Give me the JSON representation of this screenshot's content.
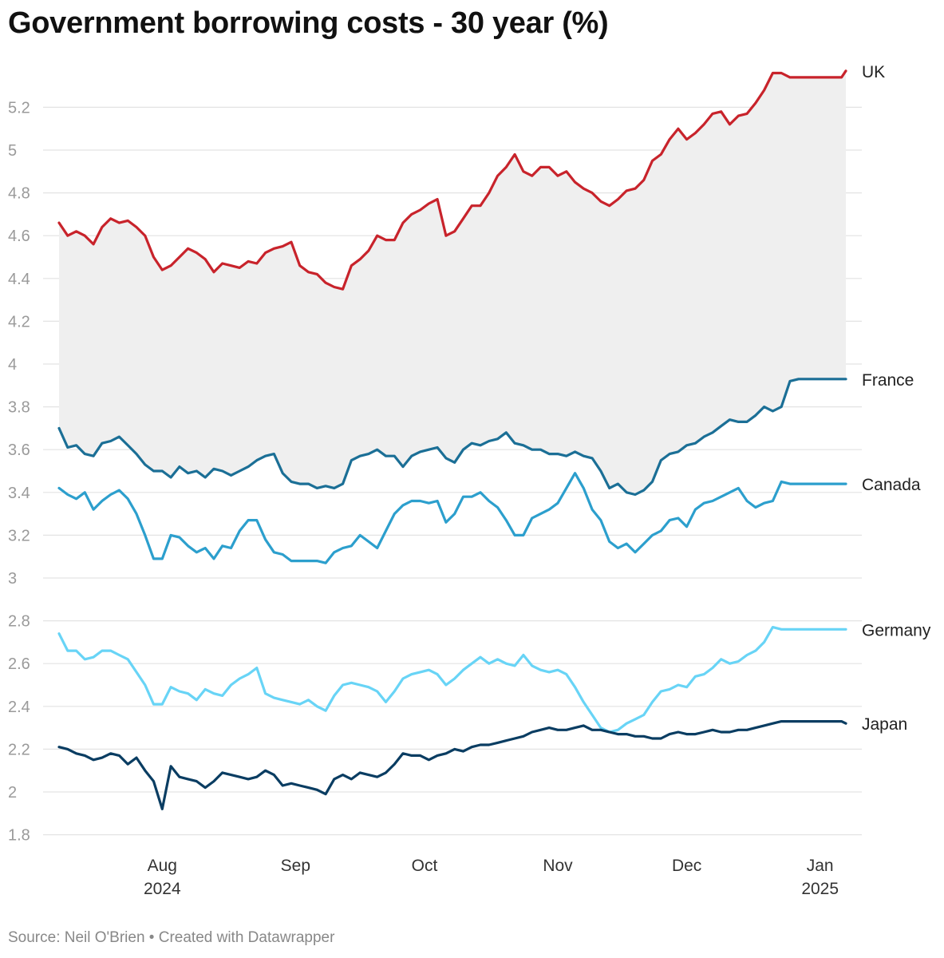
{
  "title": "Government borrowing costs - 30 year (%)",
  "source": "Source: Neil O'Brien • Created with Datawrapper",
  "chart_data": {
    "type": "line",
    "title": "Government borrowing costs - 30 year (%)",
    "ylim": [
      1.8,
      5.4
    ],
    "yticks": [
      "5.2",
      "5",
      "4.8",
      "4.6",
      "4.4",
      "4.2",
      "4",
      "3.8",
      "3.6",
      "3.4",
      "3.2",
      "3",
      "2.8",
      "2.6",
      "2.4",
      "2.2",
      "2",
      "1.8"
    ],
    "x_range_days": [
      0,
      183
    ],
    "x_unit": "days since 2024-07-08",
    "xticks": [
      {
        "label": "Aug",
        "sub": "2024",
        "day": 24
      },
      {
        "label": "Sep",
        "sub": "",
        "day": 55
      },
      {
        "label": "Oct",
        "sub": "",
        "day": 85
      },
      {
        "label": "Nov",
        "sub": "",
        "day": 116
      },
      {
        "label": "Dec",
        "sub": "",
        "day": 146
      },
      {
        "label": "Jan",
        "sub": "2025",
        "day": 177
      }
    ],
    "shade_between": [
      "UK",
      "France"
    ],
    "series": [
      {
        "name": "UK",
        "color": "#c8232b",
        "x": [
          0,
          2,
          4,
          6,
          8,
          10,
          12,
          14,
          16,
          18,
          20,
          22,
          24,
          26,
          28,
          30,
          32,
          34,
          36,
          38,
          40,
          42,
          44,
          46,
          48,
          50,
          52,
          54,
          56,
          58,
          60,
          62,
          64,
          66,
          68,
          70,
          72,
          74,
          76,
          78,
          80,
          82,
          84,
          86,
          88,
          90,
          92,
          94,
          96,
          98,
          100,
          102,
          104,
          106,
          108,
          110,
          112,
          114,
          116,
          118,
          120,
          122,
          124,
          126,
          128,
          130,
          132,
          134,
          136,
          138,
          140,
          142,
          144,
          146,
          148,
          150,
          152,
          154,
          156,
          158,
          160,
          162,
          164,
          166,
          168,
          170,
          172,
          174,
          176,
          178,
          180,
          182,
          183
        ],
        "values": [
          4.66,
          4.6,
          4.62,
          4.6,
          4.56,
          4.64,
          4.68,
          4.66,
          4.67,
          4.64,
          4.6,
          4.5,
          4.44,
          4.46,
          4.5,
          4.54,
          4.52,
          4.49,
          4.43,
          4.47,
          4.46,
          4.45,
          4.48,
          4.47,
          4.52,
          4.54,
          4.55,
          4.57,
          4.46,
          4.43,
          4.42,
          4.38,
          4.36,
          4.35,
          4.46,
          4.49,
          4.53,
          4.6,
          4.58,
          4.58,
          4.66,
          4.7,
          4.72,
          4.75,
          4.77,
          4.6,
          4.62,
          4.68,
          4.74,
          4.74,
          4.8,
          4.88,
          4.92,
          4.98,
          4.9,
          4.88,
          4.92,
          4.92,
          4.88,
          4.9,
          4.85,
          4.82,
          4.8,
          4.76,
          4.74,
          4.77,
          4.81,
          4.82,
          4.86,
          4.95,
          4.98,
          5.05,
          5.1,
          5.05,
          5.08,
          5.12,
          5.17,
          5.18,
          5.12,
          5.16,
          5.17,
          5.22,
          5.28,
          5.36,
          5.36,
          5.34,
          5.34,
          5.34,
          5.34,
          5.34,
          5.34,
          5.34,
          5.37
        ]
      },
      {
        "name": "France",
        "color": "#1b6f96",
        "x": [
          0,
          2,
          4,
          6,
          8,
          10,
          12,
          14,
          16,
          18,
          20,
          22,
          24,
          26,
          28,
          30,
          32,
          34,
          36,
          38,
          40,
          42,
          44,
          46,
          48,
          50,
          52,
          54,
          56,
          58,
          60,
          62,
          64,
          66,
          68,
          70,
          72,
          74,
          76,
          78,
          80,
          82,
          84,
          86,
          88,
          90,
          92,
          94,
          96,
          98,
          100,
          102,
          104,
          106,
          108,
          110,
          112,
          114,
          116,
          118,
          120,
          122,
          124,
          126,
          128,
          130,
          132,
          134,
          136,
          138,
          140,
          142,
          144,
          146,
          148,
          150,
          152,
          154,
          156,
          158,
          160,
          162,
          164,
          166,
          168,
          170,
          172,
          174,
          176,
          178,
          180,
          182,
          183
        ],
        "values": [
          3.7,
          3.61,
          3.62,
          3.58,
          3.57,
          3.63,
          3.64,
          3.66,
          3.62,
          3.58,
          3.53,
          3.5,
          3.5,
          3.47,
          3.52,
          3.49,
          3.5,
          3.47,
          3.51,
          3.5,
          3.48,
          3.5,
          3.52,
          3.55,
          3.57,
          3.58,
          3.49,
          3.45,
          3.44,
          3.44,
          3.42,
          3.43,
          3.42,
          3.44,
          3.55,
          3.57,
          3.58,
          3.6,
          3.57,
          3.57,
          3.52,
          3.57,
          3.59,
          3.6,
          3.61,
          3.56,
          3.54,
          3.6,
          3.63,
          3.62,
          3.64,
          3.65,
          3.68,
          3.63,
          3.62,
          3.6,
          3.6,
          3.58,
          3.58,
          3.57,
          3.59,
          3.57,
          3.56,
          3.5,
          3.42,
          3.44,
          3.4,
          3.39,
          3.41,
          3.45,
          3.55,
          3.58,
          3.59,
          3.62,
          3.63,
          3.66,
          3.68,
          3.71,
          3.74,
          3.73,
          3.73,
          3.76,
          3.8,
          3.78,
          3.8,
          3.92,
          3.93,
          3.93,
          3.93,
          3.93,
          3.93,
          3.93,
          3.93
        ]
      },
      {
        "name": "Canada",
        "color": "#2c9fcd",
        "x": [
          0,
          2,
          4,
          6,
          8,
          10,
          12,
          14,
          16,
          18,
          20,
          22,
          24,
          26,
          28,
          30,
          32,
          34,
          36,
          38,
          40,
          42,
          44,
          46,
          48,
          50,
          52,
          54,
          56,
          58,
          60,
          62,
          64,
          66,
          68,
          70,
          72,
          74,
          76,
          78,
          80,
          82,
          84,
          86,
          88,
          90,
          92,
          94,
          96,
          98,
          100,
          102,
          104,
          106,
          108,
          110,
          112,
          114,
          116,
          118,
          120,
          122,
          124,
          126,
          128,
          130,
          132,
          134,
          136,
          138,
          140,
          142,
          144,
          146,
          148,
          150,
          152,
          154,
          156,
          158,
          160,
          162,
          164,
          166,
          168,
          170,
          172,
          174,
          176,
          178,
          180,
          182,
          183
        ],
        "values": [
          3.42,
          3.39,
          3.37,
          3.4,
          3.32,
          3.36,
          3.39,
          3.41,
          3.37,
          3.3,
          3.2,
          3.09,
          3.09,
          3.2,
          3.19,
          3.15,
          3.12,
          3.14,
          3.09,
          3.15,
          3.14,
          3.22,
          3.27,
          3.27,
          3.18,
          3.12,
          3.11,
          3.08,
          3.08,
          3.08,
          3.08,
          3.07,
          3.12,
          3.14,
          3.15,
          3.2,
          3.17,
          3.14,
          3.22,
          3.3,
          3.34,
          3.36,
          3.36,
          3.35,
          3.36,
          3.26,
          3.3,
          3.38,
          3.38,
          3.4,
          3.36,
          3.33,
          3.27,
          3.2,
          3.2,
          3.28,
          3.3,
          3.32,
          3.35,
          3.42,
          3.49,
          3.42,
          3.32,
          3.27,
          3.17,
          3.14,
          3.16,
          3.12,
          3.16,
          3.2,
          3.22,
          3.27,
          3.28,
          3.24,
          3.32,
          3.35,
          3.36,
          3.38,
          3.4,
          3.42,
          3.36,
          3.33,
          3.35,
          3.36,
          3.45,
          3.44,
          3.44,
          3.44,
          3.44,
          3.44,
          3.44,
          3.44,
          3.44
        ]
      },
      {
        "name": "Germany",
        "color": "#68d4f6",
        "x": [
          0,
          2,
          4,
          6,
          8,
          10,
          12,
          14,
          16,
          18,
          20,
          22,
          24,
          26,
          28,
          30,
          32,
          34,
          36,
          38,
          40,
          42,
          44,
          46,
          48,
          50,
          52,
          54,
          56,
          58,
          60,
          62,
          64,
          66,
          68,
          70,
          72,
          74,
          76,
          78,
          80,
          82,
          84,
          86,
          88,
          90,
          92,
          94,
          96,
          98,
          100,
          102,
          104,
          106,
          108,
          110,
          112,
          114,
          116,
          118,
          120,
          122,
          124,
          126,
          128,
          130,
          132,
          134,
          136,
          138,
          140,
          142,
          144,
          146,
          148,
          150,
          152,
          154,
          156,
          158,
          160,
          162,
          164,
          166,
          168,
          170,
          172,
          174,
          176,
          178,
          180,
          182,
          183
        ],
        "values": [
          2.74,
          2.66,
          2.66,
          2.62,
          2.63,
          2.66,
          2.66,
          2.64,
          2.62,
          2.56,
          2.5,
          2.41,
          2.41,
          2.49,
          2.47,
          2.46,
          2.43,
          2.48,
          2.46,
          2.45,
          2.5,
          2.53,
          2.55,
          2.58,
          2.46,
          2.44,
          2.43,
          2.42,
          2.41,
          2.43,
          2.4,
          2.38,
          2.45,
          2.5,
          2.51,
          2.5,
          2.49,
          2.47,
          2.42,
          2.47,
          2.53,
          2.55,
          2.56,
          2.57,
          2.55,
          2.5,
          2.53,
          2.57,
          2.6,
          2.63,
          2.6,
          2.62,
          2.6,
          2.59,
          2.64,
          2.59,
          2.57,
          2.56,
          2.57,
          2.55,
          2.49,
          2.42,
          2.36,
          2.3,
          2.28,
          2.29,
          2.32,
          2.34,
          2.36,
          2.42,
          2.47,
          2.48,
          2.5,
          2.49,
          2.54,
          2.55,
          2.58,
          2.62,
          2.6,
          2.61,
          2.64,
          2.66,
          2.7,
          2.77,
          2.76,
          2.76,
          2.76,
          2.76,
          2.76,
          2.76,
          2.76,
          2.76,
          2.76
        ]
      },
      {
        "name": "Japan",
        "color": "#0a3d62",
        "x": [
          0,
          2,
          4,
          6,
          8,
          10,
          12,
          14,
          16,
          18,
          20,
          22,
          24,
          26,
          28,
          30,
          32,
          34,
          36,
          38,
          40,
          42,
          44,
          46,
          48,
          50,
          52,
          54,
          56,
          58,
          60,
          62,
          64,
          66,
          68,
          70,
          72,
          74,
          76,
          78,
          80,
          82,
          84,
          86,
          88,
          90,
          92,
          94,
          96,
          98,
          100,
          102,
          104,
          106,
          108,
          110,
          112,
          114,
          116,
          118,
          120,
          122,
          124,
          126,
          128,
          130,
          132,
          134,
          136,
          138,
          140,
          142,
          144,
          146,
          148,
          150,
          152,
          154,
          156,
          158,
          160,
          162,
          164,
          166,
          168,
          170,
          172,
          174,
          176,
          178,
          180,
          182,
          183
        ],
        "values": [
          2.21,
          2.2,
          2.18,
          2.17,
          2.15,
          2.16,
          2.18,
          2.17,
          2.13,
          2.16,
          2.1,
          2.05,
          1.92,
          2.12,
          2.07,
          2.06,
          2.05,
          2.02,
          2.05,
          2.09,
          2.08,
          2.07,
          2.06,
          2.07,
          2.1,
          2.08,
          2.03,
          2.04,
          2.03,
          2.02,
          2.01,
          1.99,
          2.06,
          2.08,
          2.06,
          2.09,
          2.08,
          2.07,
          2.09,
          2.13,
          2.18,
          2.17,
          2.17,
          2.15,
          2.17,
          2.18,
          2.2,
          2.19,
          2.21,
          2.22,
          2.22,
          2.23,
          2.24,
          2.25,
          2.26,
          2.28,
          2.29,
          2.3,
          2.29,
          2.29,
          2.3,
          2.31,
          2.29,
          2.29,
          2.28,
          2.27,
          2.27,
          2.26,
          2.26,
          2.25,
          2.25,
          2.27,
          2.28,
          2.27,
          2.27,
          2.28,
          2.29,
          2.28,
          2.28,
          2.29,
          2.29,
          2.3,
          2.31,
          2.32,
          2.33,
          2.33,
          2.33,
          2.33,
          2.33,
          2.33,
          2.33,
          2.33,
          2.32
        ]
      }
    ]
  }
}
